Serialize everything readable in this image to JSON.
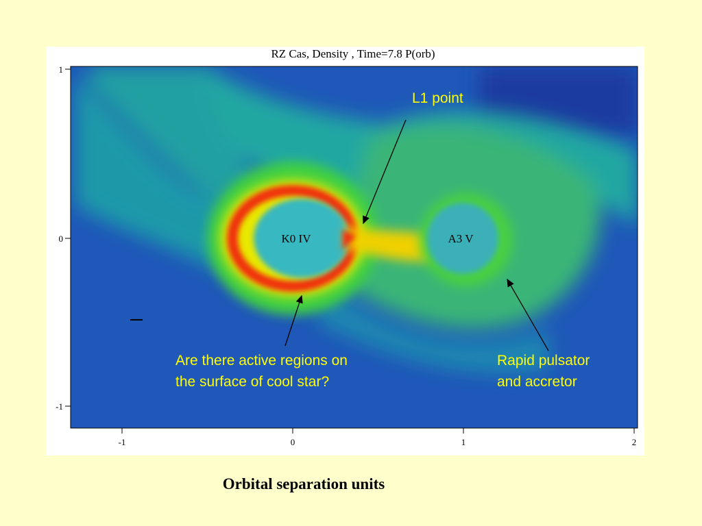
{
  "plot": {
    "title": "RZ Cas,  Density , Time=7.8 P(orb)",
    "x_ticks": [
      "-1",
      "0",
      "1",
      "2"
    ],
    "y_ticks": [
      "1",
      "0",
      "-1"
    ],
    "star_labels": [
      "K0 IV",
      "A3 V"
    ]
  },
  "annotations": [
    {
      "lines": [
        "L1 point"
      ]
    },
    {
      "lines": [
        "Are there active regions on",
        "the surface of cool star?"
      ]
    },
    {
      "lines": [
        "Rapid pulsator",
        "and accretor"
      ]
    }
  ],
  "caption": "Orbital separation units"
}
